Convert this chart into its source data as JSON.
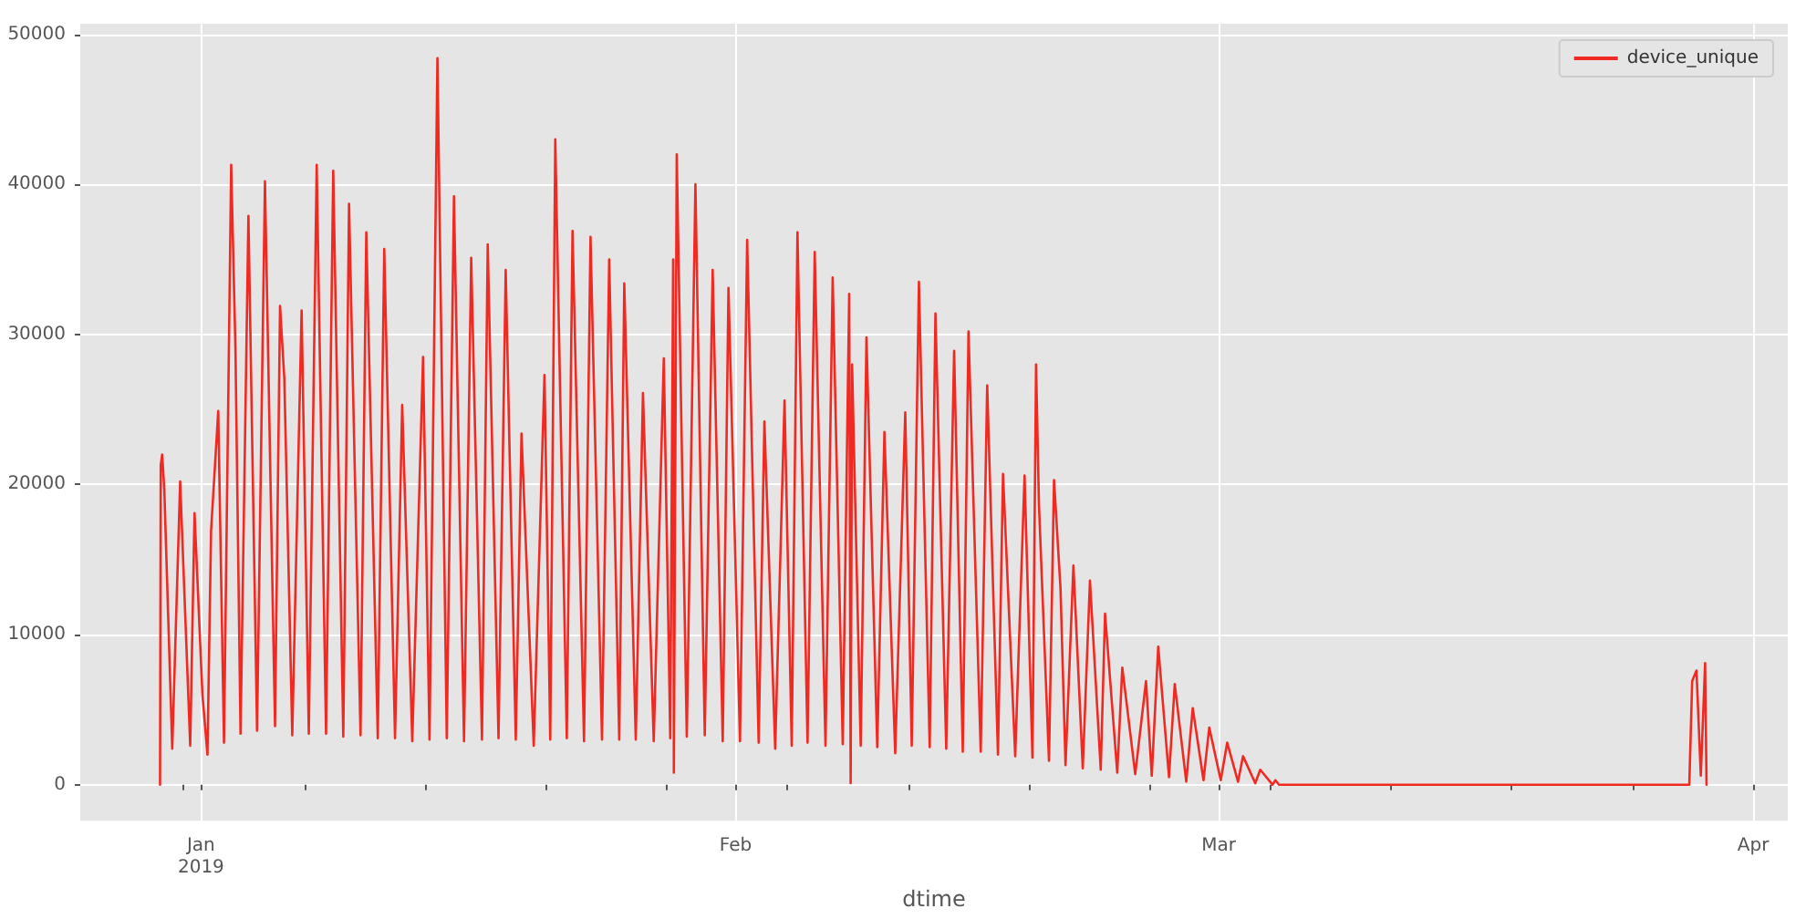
{
  "chart_data": {
    "type": "line",
    "xlabel": "dtime",
    "xlim": [
      "2018-12-25",
      "2019-04-03"
    ],
    "ylim": [
      -2400,
      50700
    ],
    "xticks": [
      {
        "value": "2018-12-31",
        "label": null
      },
      {
        "value": "2019-01-01",
        "label": "Jan\n2019"
      },
      {
        "value": "2019-01-07",
        "label": null
      },
      {
        "value": "2019-01-14",
        "label": null
      },
      {
        "value": "2019-01-21",
        "label": null
      },
      {
        "value": "2019-01-28",
        "label": null
      },
      {
        "value": "2019-02-01",
        "label": "Feb"
      },
      {
        "value": "2019-02-04",
        "label": null
      },
      {
        "value": "2019-02-11",
        "label": null
      },
      {
        "value": "2019-02-18",
        "label": null
      },
      {
        "value": "2019-02-25",
        "label": null
      },
      {
        "value": "2019-03-01",
        "label": "Mar"
      },
      {
        "value": "2019-03-04",
        "label": null
      },
      {
        "value": "2019-03-11",
        "label": null
      },
      {
        "value": "2019-03-18",
        "label": null
      },
      {
        "value": "2019-03-25",
        "label": null
      },
      {
        "value": "2019-04-01",
        "label": "Apr"
      }
    ],
    "yticks": [
      0,
      10000,
      20000,
      30000,
      40000,
      50000
    ],
    "grid": true,
    "legend": "top right",
    "marker": "none",
    "series": [
      {
        "name": "device_unique",
        "color": "#f02a22",
        "x": [
          "2018-12-29T15:00",
          "2018-12-29T16:00",
          "2018-12-29T18:00",
          "2018-12-29T21:00",
          "2018-12-30T08:00",
          "2018-12-30T19:00",
          "2018-12-31T09:00",
          "2018-12-31T15:00",
          "2019-01-01T02:00",
          "2019-01-01T09:00",
          "2019-01-01T14:00",
          "2019-01-02T00:00",
          "2019-01-02T08:00",
          "2019-01-02T18:00",
          "2019-01-03T00:00",
          "2019-01-03T07:00",
          "2019-01-03T18:00",
          "2019-01-04T06:00",
          "2019-01-04T17:00",
          "2019-01-05T07:00",
          "2019-01-05T14:00",
          "2019-01-05T20:00",
          "2019-01-06T07:00",
          "2019-01-06T20:00",
          "2019-01-07T06:00",
          "2019-01-07T17:00",
          "2019-01-08T06:00",
          "2019-01-08T16:00",
          "2019-01-09T06:00",
          "2019-01-09T14:00",
          "2019-01-10T06:00",
          "2019-01-10T14:00",
          "2019-01-11T06:00",
          "2019-01-11T15:00",
          "2019-01-12T06:00",
          "2019-01-12T16:00",
          "2019-01-13T06:00",
          "2019-01-13T21:00",
          "2019-01-14T06:00",
          "2019-01-14T17:00",
          "2019-01-15T06:00",
          "2019-01-15T16:00",
          "2019-01-16T06:00",
          "2019-01-16T16:00",
          "2019-01-17T07:00",
          "2019-01-17T15:00",
          "2019-01-18T06:00",
          "2019-01-18T16:00",
          "2019-01-19T06:00",
          "2019-01-19T14:00",
          "2019-01-20T07:00",
          "2019-01-20T22:00",
          "2019-01-21T06:00",
          "2019-01-21T13:00",
          "2019-01-22T05:00",
          "2019-01-22T13:00",
          "2019-01-23T05:00",
          "2019-01-23T14:00",
          "2019-01-24T06:00",
          "2019-01-24T16:00",
          "2019-01-25T06:00",
          "2019-01-25T13:00",
          "2019-01-26T05:00",
          "2019-01-26T15:00",
          "2019-01-27T06:00",
          "2019-01-27T20:00",
          "2019-01-28T05:00",
          "2019-01-28T09:00",
          "2019-01-28T10:00",
          "2019-01-28T14:00",
          "2019-01-29T04:00",
          "2019-01-29T16:00",
          "2019-01-30T05:00",
          "2019-01-30T16:00",
          "2019-01-31T06:00",
          "2019-01-31T14:00",
          "2019-02-01T06:00",
          "2019-02-01T16:00",
          "2019-02-02T08:00",
          "2019-02-02T16:00",
          "2019-02-03T07:00",
          "2019-02-03T20:00",
          "2019-02-04T06:00",
          "2019-02-04T14:00",
          "2019-02-05T04:00",
          "2019-02-05T14:00",
          "2019-02-06T05:00",
          "2019-02-06T15:00",
          "2019-02-07T05:00",
          "2019-02-07T14:00",
          "2019-02-07T16:00",
          "2019-02-07T18:00",
          "2019-02-08T06:00",
          "2019-02-08T14:00",
          "2019-02-09T05:00",
          "2019-02-09T15:00",
          "2019-02-10T06:00",
          "2019-02-10T20:00",
          "2019-02-11T05:00",
          "2019-02-11T15:00",
          "2019-02-12T06:00",
          "2019-02-12T14:00",
          "2019-02-13T05:00",
          "2019-02-13T16:00",
          "2019-02-14T04:00",
          "2019-02-14T12:00",
          "2019-02-15T05:00",
          "2019-02-15T14:00",
          "2019-02-16T05:00",
          "2019-02-16T12:00",
          "2019-02-17T05:00",
          "2019-02-17T18:00",
          "2019-02-18T05:00",
          "2019-02-18T10:00",
          "2019-02-18T14:00",
          "2019-02-19T04:00",
          "2019-02-19T11:00",
          "2019-02-19T20:00",
          "2019-02-20T03:00",
          "2019-02-20T14:00",
          "2019-02-21T03:00",
          "2019-02-21T13:00",
          "2019-02-22T04:00",
          "2019-02-22T10:00",
          "2019-02-23T03:00",
          "2019-02-23T10:00",
          "2019-02-24T04:00",
          "2019-02-24T19:00",
          "2019-02-25T03:00",
          "2019-02-25T12:00",
          "2019-02-26T03:00",
          "2019-02-26T11:00",
          "2019-02-27T03:00",
          "2019-02-27T12:00",
          "2019-02-28T03:00",
          "2019-02-28T11:00",
          "2019-03-01T03:00",
          "2019-03-01T12:00",
          "2019-03-02T03:00",
          "2019-03-02T10:00",
          "2019-03-03T03:00",
          "2019-03-03T10:00",
          "2019-03-04T03:00",
          "2019-03-04T07:00",
          "2019-03-04T12:00",
          "2019-03-28T07:00",
          "2019-03-28T11:00",
          "2019-03-28T17:00",
          "2019-03-28T23:00",
          "2019-03-29T05:00",
          "2019-03-29T07:00"
        ],
        "values": [
          0,
          21300,
          22000,
          19600,
          2400,
          20200,
          2600,
          18100,
          6000,
          2000,
          16900,
          24900,
          2800,
          41300,
          28900,
          3400,
          37900,
          3600,
          40200,
          3900,
          31900,
          27000,
          3300,
          31600,
          3400,
          41300,
          3400,
          40900,
          3200,
          38700,
          3300,
          36800,
          3100,
          35700,
          3100,
          25300,
          2900,
          28500,
          3000,
          48400,
          3100,
          39200,
          2900,
          35100,
          3000,
          36000,
          3100,
          34300,
          3000,
          23400,
          2600,
          27300,
          3000,
          43000,
          3100,
          36900,
          2900,
          36500,
          3000,
          35000,
          3000,
          33400,
          3000,
          26100,
          2900,
          28400,
          3100,
          35000,
          800,
          42000,
          3200,
          40000,
          3300,
          34300,
          2900,
          33100,
          2900,
          36300,
          2800,
          24200,
          2400,
          25600,
          2600,
          36800,
          2800,
          35500,
          2600,
          33800,
          2700,
          32700,
          100,
          28000,
          2600,
          29800,
          2500,
          23500,
          2100,
          24800,
          2600,
          33500,
          2500,
          31400,
          2400,
          28900,
          2200,
          30200,
          2200,
          26600,
          2000,
          20700,
          1900,
          20600,
          1800,
          28000,
          18700,
          1600,
          20300,
          13100,
          1300,
          14600,
          1100,
          13600,
          1000,
          11400,
          800,
          7800,
          700,
          6900,
          600,
          9200,
          500,
          6700,
          200,
          5100,
          300,
          3800,
          300,
          2800,
          200,
          1900,
          100,
          1000,
          0,
          300,
          0,
          0,
          6900,
          7600,
          600,
          8100,
          0
        ]
      }
    ]
  }
}
